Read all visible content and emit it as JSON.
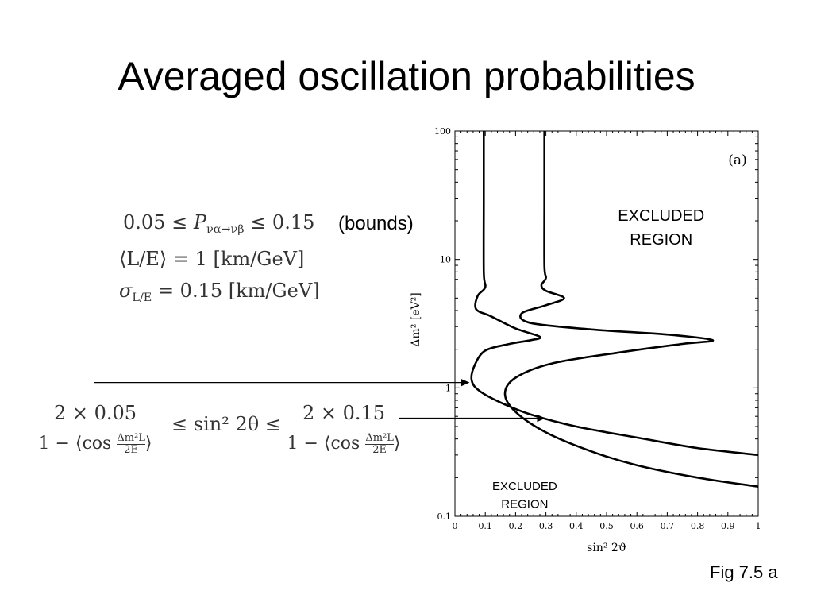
{
  "slide": {
    "title": "Averaged oscillation probabilities",
    "bounds_note": "(bounds)",
    "figure_label": "Fig 7.5 a"
  },
  "equations": {
    "p_lower": "0.05 ≤ ",
    "p_symbol": "P",
    "p_sub": "να→νβ",
    "p_upper": " ≤ 0.15",
    "le_mean": "⟨L/E⟩ = 1 [km/GeV]",
    "sigma_symbol": "σ",
    "sigma_sub": "L/E",
    "sigma_rest": " = 0.15 [km/GeV]",
    "frac_left_num": "2 × 0.05",
    "frac_right_num": "2 × 0.15",
    "frac_den_prefix": "1 − ⟨cos ",
    "frac_den_small_num": "Δm²L",
    "frac_den_small_den": "2E",
    "frac_den_suffix": "⟩",
    "middle": "≤ sin² 2θ ≤"
  },
  "chart_data": {
    "type": "line",
    "panel_label": "(a)",
    "xlabel": "sin² 2ϑ",
    "ylabel": "Δm² [eV²]",
    "xlim": [
      0,
      1
    ],
    "ylim": [
      0.1,
      100
    ],
    "yscale": "log",
    "x_ticks": [
      "0",
      "0.1",
      "0.2",
      "0.3",
      "0.4",
      "0.5",
      "0.6",
      "0.7",
      "0.8",
      "0.9",
      "1"
    ],
    "y_ticks": [
      "0.1",
      "1",
      "10",
      "100"
    ],
    "series": [
      {
        "x": [
          1.0,
          0.8,
          0.6,
          0.4,
          0.25,
          0.15,
          0.08,
          0.055,
          0.065,
          0.1,
          0.18,
          0.25,
          0.28,
          0.2,
          0.12,
          0.07,
          0.075,
          0.1,
          0.095,
          0.095,
          0.095
        ],
        "y": [
          0.3,
          0.34,
          0.41,
          0.5,
          0.62,
          0.77,
          0.95,
          1.15,
          1.5,
          1.95,
          2.2,
          2.35,
          2.5,
          2.9,
          3.6,
          4.1,
          5.2,
          6.1,
          8.0,
          30,
          100
        ]
      },
      {
        "x": [
          1.0,
          0.8,
          0.6,
          0.45,
          0.3,
          0.2,
          0.165,
          0.2,
          0.32,
          0.55,
          0.75,
          0.85,
          0.7,
          0.45,
          0.25,
          0.22,
          0.3,
          0.36,
          0.3,
          0.285,
          0.3,
          0.295,
          0.295,
          0.295
        ],
        "y": [
          0.17,
          0.2,
          0.25,
          0.32,
          0.45,
          0.65,
          0.9,
          1.2,
          1.55,
          1.9,
          2.2,
          2.35,
          2.6,
          2.85,
          3.2,
          3.8,
          4.4,
          5.0,
          5.7,
          6.3,
          7.2,
          9.0,
          30,
          100
        ]
      }
    ],
    "annotations": [
      {
        "text_lines": [
          "EXCLUDED",
          "REGION"
        ],
        "x": 0.68,
        "y": 20,
        "size": "large"
      },
      {
        "text_lines": [
          "EXCLUDED",
          "REGION"
        ],
        "x": 0.23,
        "y": 0.16,
        "size": "small"
      }
    ],
    "arrows": [
      {
        "from_element": "le-mean-equation",
        "to_x": 0.05,
        "to_y": 1.1
      },
      {
        "from_element": "right-fraction",
        "to_x": 0.3,
        "to_y": 0.58
      }
    ]
  }
}
